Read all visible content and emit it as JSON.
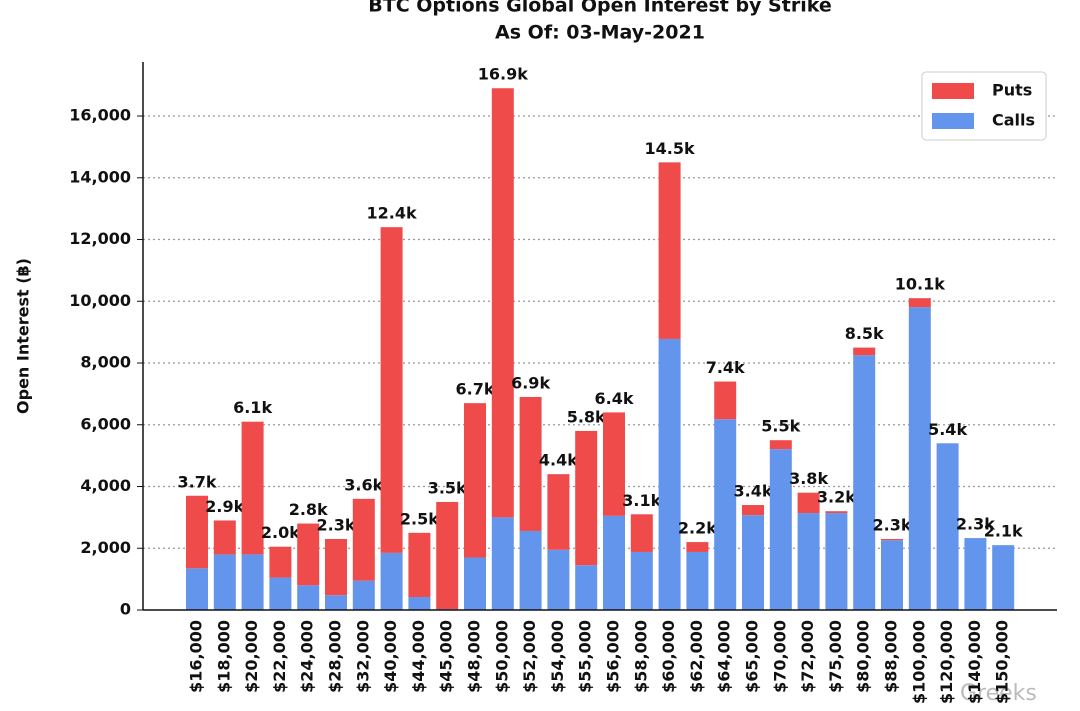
{
  "chart_data": {
    "type": "stacked-bar",
    "title": "BTC Options Global Open Interest by Strike",
    "subtitle": "As Of: 03-May-2021",
    "y_label": "Open Interest (฿)",
    "watermark": "Greeks",
    "legend": "upper-right",
    "grid": true,
    "categories": [
      "$16,000",
      "$18,000",
      "$20,000",
      "$22,000",
      "$24,000",
      "$28,000",
      "$32,000",
      "$40,000",
      "$44,000",
      "$45,000",
      "$48,000",
      "$50,000",
      "$52,000",
      "$54,000",
      "$55,000",
      "$56,000",
      "$58,000",
      "$60,000",
      "$62,000",
      "$64,000",
      "$65,000",
      "$70,000",
      "$72,000",
      "$75,000",
      "$80,000",
      "$88,000",
      "$100,000",
      "$120,000",
      "$140,000",
      "$150,000"
    ],
    "series": [
      {
        "name": "Calls",
        "color": "#6495ed",
        "values": [
          1350,
          1800,
          1800,
          1050,
          800,
          480,
          950,
          1850,
          420,
          30,
          1700,
          3000,
          2560,
          1950,
          1450,
          3050,
          1880,
          8780,
          1880,
          6180,
          3070,
          5210,
          3140,
          3140,
          8250,
          2260,
          9810,
          5400,
          2330,
          2100
        ]
      },
      {
        "name": "Puts",
        "color": "#f04b4b",
        "values": [
          2350,
          1100,
          4300,
          1000,
          2000,
          1820,
          2650,
          10550,
          2080,
          3470,
          5000,
          13900,
          4340,
          2450,
          4350,
          3350,
          1220,
          5720,
          320,
          1220,
          330,
          290,
          660,
          60,
          250,
          40,
          290,
          0,
          0,
          0
        ]
      }
    ],
    "totals": {
      "values": [
        3700,
        2900,
        6100,
        2050,
        2800,
        2300,
        3600,
        12400,
        2500,
        3500,
        6700,
        16900,
        6900,
        4400,
        5800,
        6400,
        3100,
        14500,
        2200,
        7400,
        3400,
        5500,
        3800,
        3200,
        8500,
        2300,
        10100,
        5400,
        2330,
        2100
      ],
      "value_labels": [
        "3.7k",
        "2.9k",
        "6.1k",
        "2.0k",
        "2.8k",
        "2.3k",
        "3.6k",
        "12.4k",
        "2.5k",
        "3.5k",
        "6.7k",
        "16.9k",
        "6.9k",
        "4.4k",
        "5.8k",
        "6.4k",
        "3.1k",
        "14.5k",
        "2.2k",
        "7.4k",
        "3.4k",
        "5.5k",
        "3.8k",
        "3.2k",
        "8.5k",
        "2.3k",
        "10.1k",
        "5.4k",
        "2.3k",
        "2.1k"
      ]
    },
    "ylim": [
      0,
      17750
    ],
    "yticks": [
      0,
      {
        "value": 2000,
        "label": "2,000"
      },
      {
        "value": 4000,
        "label": "4,000"
      },
      {
        "value": 6000,
        "label": "6,000"
      },
      {
        "value": 8000,
        "label": "8,000"
      },
      {
        "value": 10000,
        "label": "10,000"
      },
      {
        "value": 12000,
        "label": "12,000"
      },
      {
        "value": 14000,
        "label": "14,000"
      },
      {
        "value": 16000,
        "label": "16,000"
      }
    ]
  }
}
